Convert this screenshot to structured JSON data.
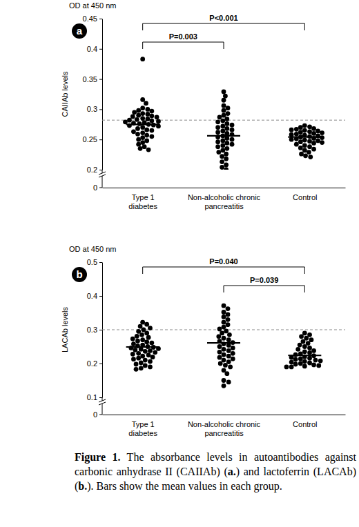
{
  "chart_data": [
    {
      "type": "scatter",
      "panel": "a",
      "y_unit": "OD at 450 nm",
      "y_label": "CAIIAb levels",
      "color": "#000000",
      "categories": [
        "Type 1\ndiabetes",
        "Non-alcoholic chronic\npancreatitis",
        "Control"
      ],
      "ylim": [
        0.2,
        0.45
      ],
      "yticks": [
        0.2,
        0.25,
        0.3,
        0.35,
        0.4,
        0.45
      ],
      "y_break_tick": 0,
      "cutoff": 0.282,
      "means": [
        0.275,
        0.256,
        0.254
      ],
      "values": [
        [
          0.383,
          0.316,
          0.31,
          0.302,
          0.3,
          0.298,
          0.297,
          0.295,
          0.293,
          0.292,
          0.29,
          0.289,
          0.288,
          0.287,
          0.285,
          0.284,
          0.283,
          0.282,
          0.281,
          0.28,
          0.279,
          0.278,
          0.277,
          0.276,
          0.275,
          0.274,
          0.273,
          0.272,
          0.27,
          0.268,
          0.266,
          0.265,
          0.263,
          0.261,
          0.259,
          0.257,
          0.255,
          0.253,
          0.25,
          0.248,
          0.245,
          0.242,
          0.238,
          0.235,
          0.233
        ],
        [
          0.329,
          0.322,
          0.315,
          0.306,
          0.302,
          0.298,
          0.293,
          0.29,
          0.287,
          0.284,
          0.281,
          0.279,
          0.276,
          0.274,
          0.272,
          0.27,
          0.268,
          0.266,
          0.264,
          0.262,
          0.26,
          0.258,
          0.256,
          0.254,
          0.252,
          0.25,
          0.248,
          0.246,
          0.244,
          0.242,
          0.24,
          0.238,
          0.235,
          0.232,
          0.229,
          0.226,
          0.222,
          0.218,
          0.213,
          0.208,
          0.204,
          0.2
        ],
        [
          0.273,
          0.271,
          0.27,
          0.268,
          0.267,
          0.266,
          0.265,
          0.264,
          0.263,
          0.262,
          0.261,
          0.26,
          0.259,
          0.258,
          0.257,
          0.256,
          0.255,
          0.254,
          0.253,
          0.252,
          0.251,
          0.25,
          0.249,
          0.248,
          0.247,
          0.246,
          0.245,
          0.244,
          0.242,
          0.24,
          0.238,
          0.236,
          0.234,
          0.232,
          0.229,
          0.226,
          0.223,
          0.221
        ]
      ],
      "comparisons": [
        {
          "label": "P=0.003",
          "from": 0,
          "to": 1
        },
        {
          "label": "P<0.001",
          "from": 0,
          "to": 2
        }
      ]
    },
    {
      "type": "scatter",
      "panel": "b",
      "y_unit": "OD at 450 nm",
      "y_label": "LACAb levels",
      "color": "#000000",
      "categories": [
        "Type 1\ndiabetes",
        "Non-alcoholic chronic\npancreatitis",
        "Control"
      ],
      "ylim": [
        0.1,
        0.5
      ],
      "yticks": [
        0.1,
        0.2,
        0.3,
        0.4,
        0.5
      ],
      "y_break_tick": 0,
      "cutoff": 0.3,
      "means": [
        0.249,
        0.261,
        0.224
      ],
      "values": [
        [
          0.322,
          0.316,
          0.31,
          0.305,
          0.3,
          0.295,
          0.29,
          0.285,
          0.281,
          0.277,
          0.273,
          0.27,
          0.267,
          0.264,
          0.261,
          0.258,
          0.255,
          0.252,
          0.25,
          0.248,
          0.246,
          0.244,
          0.242,
          0.24,
          0.238,
          0.236,
          0.233,
          0.23,
          0.228,
          0.225,
          0.222,
          0.219,
          0.216,
          0.213,
          0.21,
          0.206,
          0.202,
          0.198,
          0.194,
          0.19,
          0.186,
          0.183
        ],
        [
          0.371,
          0.362,
          0.352,
          0.345,
          0.338,
          0.33,
          0.322,
          0.315,
          0.308,
          0.302,
          0.296,
          0.29,
          0.285,
          0.28,
          0.275,
          0.27,
          0.266,
          0.262,
          0.258,
          0.254,
          0.25,
          0.246,
          0.242,
          0.238,
          0.234,
          0.23,
          0.226,
          0.222,
          0.218,
          0.214,
          0.21,
          0.205,
          0.2,
          0.195,
          0.19,
          0.18,
          0.17,
          0.15,
          0.145,
          0.134
        ],
        [
          0.29,
          0.285,
          0.28,
          0.275,
          0.27,
          0.265,
          0.26,
          0.255,
          0.25,
          0.246,
          0.242,
          0.238,
          0.235,
          0.232,
          0.229,
          0.226,
          0.223,
          0.22,
          0.218,
          0.216,
          0.214,
          0.212,
          0.21,
          0.208,
          0.206,
          0.204,
          0.202,
          0.2,
          0.198,
          0.196,
          0.194,
          0.192,
          0.19,
          0.19
        ]
      ],
      "comparisons": [
        {
          "label": "P=0.039",
          "from": 1,
          "to": 2
        },
        {
          "label": "P=0.040",
          "from": 0,
          "to": 2
        }
      ]
    }
  ],
  "caption": [
    {
      "text": "Figure 1.",
      "bold": true
    },
    {
      "text": " The absorbance levels in autoantibodies against carbonic anhydrase II (CAIIAb) ("
    },
    {
      "text": "a.",
      "bold": true
    },
    {
      "text": ") and lactoferrin (LACAb) ("
    },
    {
      "text": "b.",
      "bold": true
    },
    {
      "text": "). Bars show the mean values in each group."
    }
  ]
}
